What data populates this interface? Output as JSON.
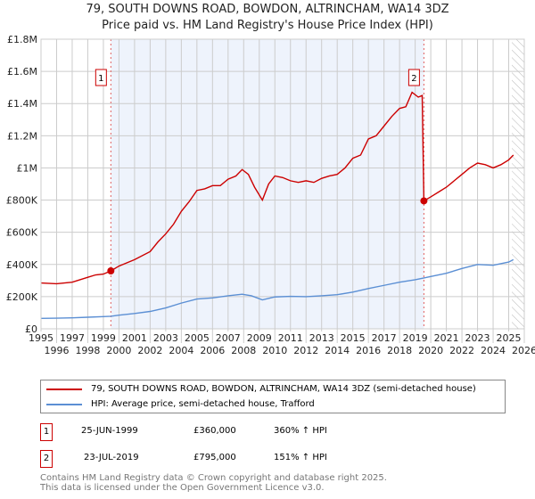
{
  "chart_data": {
    "type": "line",
    "title": "79, SOUTH DOWNS ROAD, BOWDON, ALTRINCHAM, WA14 3DZ",
    "subtitle": "Price paid vs. HM Land Registry's House Price Index (HPI)",
    "xlim": [
      1995,
      2026
    ],
    "ylim": [
      0,
      1800000
    ],
    "y_ticks": [
      {
        "v": 0,
        "label": "£0"
      },
      {
        "v": 200000,
        "label": "£200K"
      },
      {
        "v": 400000,
        "label": "£400K"
      },
      {
        "v": 600000,
        "label": "£600K"
      },
      {
        "v": 800000,
        "label": "£800K"
      },
      {
        "v": 1000000,
        "label": "£1M"
      },
      {
        "v": 1200000,
        "label": "£1.2M"
      },
      {
        "v": 1400000,
        "label": "£1.4M"
      },
      {
        "v": 1600000,
        "label": "£1.6M"
      },
      {
        "v": 1800000,
        "label": "£1.8M"
      }
    ],
    "x_ticks": [
      1995,
      1996,
      1997,
      1998,
      1999,
      2000,
      2001,
      2002,
      2003,
      2004,
      2005,
      2006,
      2007,
      2008,
      2009,
      2010,
      2011,
      2012,
      2013,
      2014,
      2015,
      2016,
      2017,
      2018,
      2019,
      2020,
      2021,
      2022,
      2023,
      2024,
      2025,
      2026
    ],
    "grid": true,
    "series": [
      {
        "name": "79, SOUTH DOWNS ROAD, BOWDON, ALTRINCHAM, WA14 3DZ (semi-detached house)",
        "color": "#cc0000",
        "x": [
          1995,
          1996,
          1997,
          1998,
          1998.5,
          1999,
          1999.48,
          2000,
          2001,
          2002,
          2002.5,
          2003,
          2003.5,
          2004,
          2004.5,
          2005,
          2005.5,
          2006,
          2006.5,
          2007,
          2007.5,
          2007.9,
          2008.3,
          2008.7,
          2009.2,
          2009.6,
          2010,
          2010.5,
          2011,
          2011.5,
          2012,
          2012.5,
          2013,
          2013.5,
          2014,
          2014.5,
          2015,
          2015.5,
          2016,
          2016.5,
          2017,
          2017.5,
          2018,
          2018.4,
          2018.8,
          2019.2,
          2019.45,
          2019.56,
          2020,
          2020.5,
          2021,
          2021.5,
          2022,
          2022.5,
          2023,
          2023.5,
          2024,
          2024.5,
          2025,
          2025.3
        ],
        "y": [
          285000,
          280000,
          290000,
          320000,
          335000,
          340000,
          360000,
          390000,
          430000,
          480000,
          540000,
          590000,
          650000,
          730000,
          790000,
          860000,
          870000,
          890000,
          890000,
          930000,
          950000,
          990000,
          960000,
          880000,
          800000,
          900000,
          950000,
          940000,
          920000,
          910000,
          920000,
          910000,
          935000,
          950000,
          960000,
          1000000,
          1060000,
          1080000,
          1180000,
          1200000,
          1260000,
          1320000,
          1370000,
          1380000,
          1470000,
          1440000,
          1450000,
          795000,
          820000,
          850000,
          880000,
          920000,
          960000,
          1000000,
          1030000,
          1020000,
          1000000,
          1020000,
          1050000,
          1080000
        ]
      },
      {
        "name": "HPI: Average price, semi-detached house, Trafford",
        "color": "#5b8fd4",
        "x": [
          1995,
          1996,
          1997,
          1998,
          1999,
          1999.48,
          2000,
          2001,
          2002,
          2003,
          2004,
          2005,
          2006,
          2007,
          2007.9,
          2008.5,
          2009.2,
          2010,
          2011,
          2012,
          2013,
          2014,
          2015,
          2016,
          2017,
          2018,
          2019,
          2019.56,
          2020,
          2021,
          2022,
          2023,
          2024,
          2025,
          2025.3
        ],
        "y": [
          65000,
          66000,
          68000,
          72000,
          76000,
          78000,
          85000,
          95000,
          108000,
          130000,
          160000,
          185000,
          192000,
          205000,
          215000,
          205000,
          180000,
          198000,
          202000,
          200000,
          205000,
          212000,
          228000,
          250000,
          270000,
          290000,
          305000,
          316000,
          325000,
          345000,
          375000,
          400000,
          395000,
          415000,
          430000
        ]
      }
    ],
    "sales": [
      {
        "id": "1",
        "x": 1999.48,
        "y": 360000,
        "date": "25-JUN-1999",
        "price": "£360,000",
        "hpi": "360% ↑ HPI"
      },
      {
        "id": "2",
        "x": 2019.56,
        "y": 795000,
        "date": "23-JUL-2019",
        "price": "£795,000",
        "hpi": "151% ↑ HPI"
      }
    ],
    "forecast_from": 2025.2
  },
  "footer": {
    "line1": "Contains HM Land Registry data © Crown copyright and database right 2025.",
    "line2": "This data is licensed under the Open Government Licence v3.0."
  }
}
